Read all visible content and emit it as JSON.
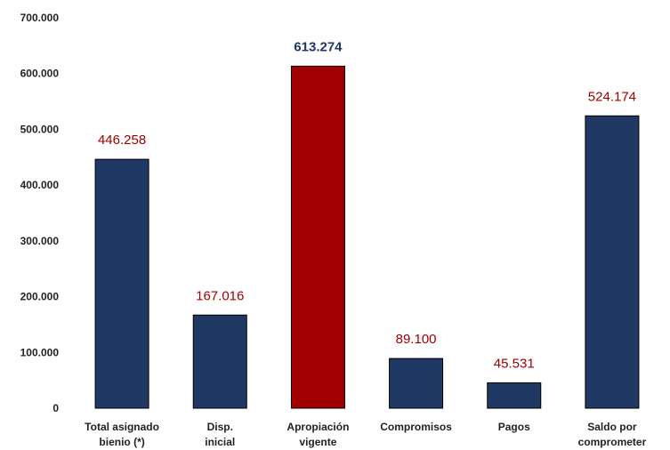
{
  "chart_data": {
    "type": "bar",
    "title": "",
    "xlabel": "",
    "ylabel": "",
    "ylim": [
      0,
      700000
    ],
    "yticks": [
      0,
      100000,
      200000,
      300000,
      400000,
      500000,
      600000,
      700000
    ],
    "ytick_labels": [
      "0",
      "100.000",
      "200.000",
      "300.000",
      "400.000",
      "500.000",
      "600.000",
      "700.000"
    ],
    "categories": [
      [
        "Total asignado",
        "bienio (*)"
      ],
      [
        "Disp.",
        "inicial"
      ],
      [
        "Apropiación",
        "vigente"
      ],
      [
        "Compromisos"
      ],
      [
        "Pagos"
      ],
      [
        "Saldo por",
        "comprometer"
      ]
    ],
    "values": [
      446258,
      167016,
      613274,
      89100,
      45531,
      524174
    ],
    "data_labels": [
      "446.258",
      "167.016",
      "613.274",
      "89.100",
      "45.531",
      "524.174"
    ],
    "bar_colors": [
      "#1f3864",
      "#1f3864",
      "#a00000",
      "#1f3864",
      "#1f3864",
      "#1f3864"
    ],
    "label_colors": [
      "#a00000",
      "#a00000",
      "#1f3864",
      "#a00000",
      "#a00000",
      "#a00000"
    ],
    "label_bold": [
      false,
      false,
      true,
      false,
      false,
      false
    ],
    "grid": false,
    "legend": "none"
  }
}
